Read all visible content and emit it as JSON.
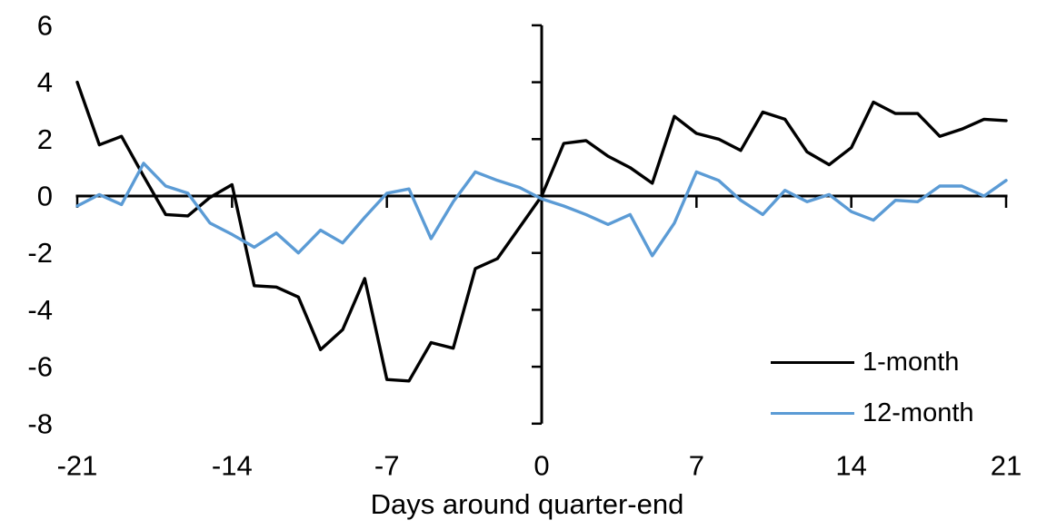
{
  "chart_data": {
    "type": "line",
    "title": "",
    "xlabel": "Days around quarter-end",
    "ylabel": "",
    "xlim": [
      -21,
      21
    ],
    "ylim": [
      -8,
      6
    ],
    "x_ticks": [
      -21,
      -14,
      -7,
      0,
      7,
      14,
      21
    ],
    "y_ticks": [
      6,
      4,
      2,
      0,
      -2,
      -4,
      -6,
      -8
    ],
    "grid": false,
    "legend_position": "lower-right",
    "axis_color": "#000000",
    "x": [
      -21,
      -20,
      -19,
      -18,
      -17,
      -16,
      -15,
      -14,
      -13,
      -12,
      -11,
      -10,
      -9,
      -8,
      -7,
      -6,
      -5,
      -4,
      -3,
      -2,
      -1,
      0,
      1,
      2,
      3,
      4,
      5,
      6,
      7,
      8,
      9,
      10,
      11,
      12,
      13,
      14,
      15,
      16,
      17,
      18,
      19,
      20,
      21
    ],
    "series": [
      {
        "name": "1-month",
        "color": "#000000",
        "values": [
          4.0,
          1.8,
          2.1,
          0.7,
          -0.65,
          -0.7,
          -0.05,
          0.4,
          -3.15,
          -3.2,
          -3.55,
          -5.4,
          -4.7,
          -2.9,
          -6.45,
          -6.5,
          -5.15,
          -5.35,
          -2.55,
          -2.2,
          -1.1,
          0.0,
          1.85,
          1.95,
          1.4,
          1.0,
          0.45,
          2.8,
          2.2,
          2.0,
          1.6,
          2.95,
          2.7,
          1.55,
          1.1,
          1.7,
          3.3,
          2.9,
          2.9,
          2.1,
          2.35,
          2.7,
          2.65
        ]
      },
      {
        "name": "12-month",
        "color": "#5B9BD5",
        "values": [
          -0.35,
          0.05,
          -0.3,
          1.15,
          0.35,
          0.1,
          -0.95,
          -1.35,
          -1.8,
          -1.3,
          -2.0,
          -1.2,
          -1.65,
          -0.75,
          0.1,
          0.25,
          -1.5,
          -0.2,
          0.85,
          0.55,
          0.3,
          -0.1,
          -0.35,
          -0.65,
          -1.0,
          -0.65,
          -2.1,
          -0.95,
          0.85,
          0.55,
          -0.15,
          -0.65,
          0.2,
          -0.2,
          0.05,
          -0.55,
          -0.85,
          -0.15,
          -0.2,
          0.35,
          0.35,
          0.0,
          0.55
        ]
      }
    ]
  }
}
